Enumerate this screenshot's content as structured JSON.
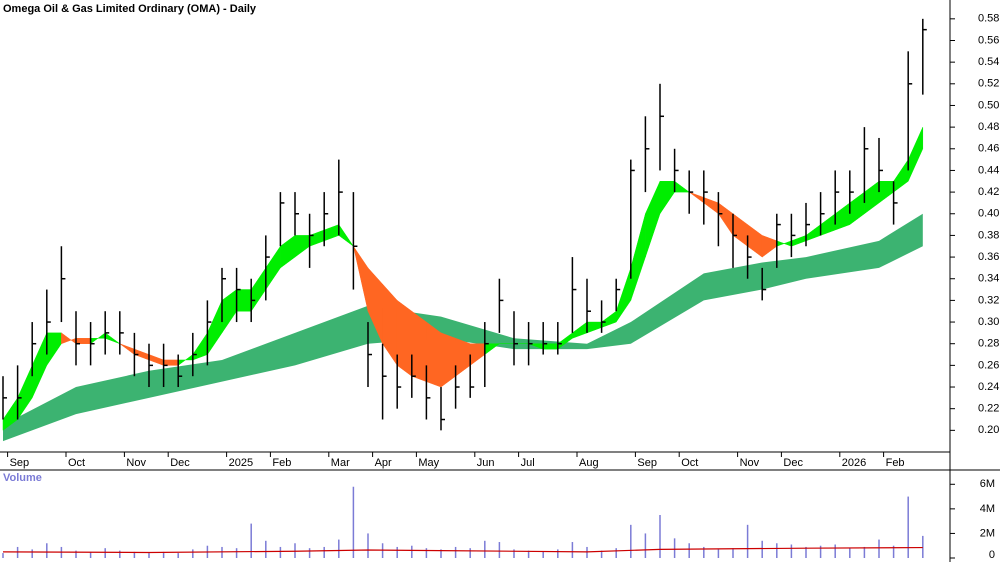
{
  "chart_data": {
    "type": "ohlc",
    "title": "Omega Oil & Gas Limited Ordinary (OMA) - Daily",
    "categories": [
      null,
      "Sep",
      null,
      null,
      null,
      "Oct",
      null,
      null,
      null,
      "Nov",
      null,
      null,
      "Dec",
      null,
      null,
      null,
      "2025",
      null,
      null,
      "Feb",
      null,
      null,
      null,
      "Mar",
      null,
      null,
      "Apr",
      null,
      null,
      "May",
      null,
      null,
      null,
      "Jun",
      null,
      null,
      "Jul",
      null,
      null,
      null,
      "Aug",
      null,
      null,
      null,
      "Sep",
      null,
      null,
      "Oct",
      null,
      null,
      null,
      "Nov",
      null,
      null,
      "Dec",
      null,
      null,
      null,
      "2026",
      null,
      null,
      "Feb",
      null,
      null
    ],
    "high": [
      0.25,
      0.26,
      0.3,
      0.33,
      0.37,
      0.31,
      0.3,
      0.31,
      0.31,
      0.29,
      0.28,
      0.28,
      0.27,
      0.29,
      0.32,
      0.35,
      0.35,
      0.34,
      0.38,
      0.42,
      0.42,
      0.4,
      0.42,
      0.45,
      0.42,
      0.3,
      0.28,
      0.27,
      0.27,
      0.26,
      0.24,
      0.26,
      0.27,
      0.3,
      0.34,
      0.31,
      0.3,
      0.3,
      0.3,
      0.36,
      0.34,
      0.32,
      0.34,
      0.45,
      0.49,
      0.52,
      0.46,
      0.44,
      0.44,
      0.42,
      0.4,
      0.38,
      0.35,
      0.4,
      0.4,
      0.41,
      0.42,
      0.44,
      0.44,
      0.48,
      0.47,
      0.43,
      0.55,
      0.58
    ],
    "low": [
      0.21,
      0.21,
      0.25,
      0.27,
      0.3,
      0.26,
      0.26,
      0.27,
      0.27,
      0.25,
      0.24,
      0.24,
      0.24,
      0.25,
      0.26,
      0.3,
      0.3,
      0.3,
      0.32,
      0.37,
      0.38,
      0.35,
      0.37,
      0.38,
      0.33,
      0.24,
      0.21,
      0.22,
      0.23,
      0.21,
      0.2,
      0.22,
      0.23,
      0.24,
      0.29,
      0.26,
      0.26,
      0.27,
      0.27,
      0.29,
      0.29,
      0.29,
      0.31,
      0.34,
      0.42,
      0.44,
      0.42,
      0.4,
      0.39,
      0.37,
      0.35,
      0.34,
      0.32,
      0.35,
      0.36,
      0.37,
      0.38,
      0.39,
      0.4,
      0.41,
      0.42,
      0.39,
      0.44,
      0.51
    ],
    "close": [
      0.23,
      0.23,
      0.28,
      0.3,
      0.34,
      0.28,
      0.28,
      0.29,
      0.29,
      0.27,
      0.26,
      0.26,
      0.25,
      0.27,
      0.3,
      0.34,
      0.33,
      0.32,
      0.36,
      0.41,
      0.4,
      0.38,
      0.4,
      0.42,
      0.37,
      0.27,
      0.25,
      0.24,
      0.25,
      0.23,
      0.21,
      0.24,
      0.24,
      0.28,
      0.32,
      0.28,
      0.28,
      0.28,
      0.28,
      0.33,
      0.31,
      0.3,
      0.33,
      0.44,
      0.46,
      0.49,
      0.44,
      0.42,
      0.42,
      0.4,
      0.38,
      0.36,
      0.33,
      0.39,
      0.38,
      0.39,
      0.4,
      0.42,
      0.42,
      0.46,
      0.44,
      0.41,
      0.52,
      0.57
    ],
    "color": "#000000",
    "short_ribbon": {
      "fast": [
        0.21,
        0.23,
        0.26,
        0.29,
        0.29,
        0.28,
        0.28,
        0.29,
        0.28,
        0.27,
        0.265,
        0.26,
        0.26,
        0.27,
        0.29,
        0.32,
        0.33,
        0.33,
        0.35,
        0.37,
        0.38,
        0.38,
        0.385,
        0.39,
        0.37,
        0.31,
        0.28,
        0.26,
        0.25,
        0.245,
        0.24,
        0.25,
        0.26,
        0.27,
        0.28,
        0.28,
        0.28,
        0.28,
        0.28,
        0.29,
        0.3,
        0.3,
        0.31,
        0.35,
        0.4,
        0.43,
        0.43,
        0.42,
        0.41,
        0.4,
        0.38,
        0.37,
        0.36,
        0.37,
        0.375,
        0.38,
        0.39,
        0.4,
        0.41,
        0.42,
        0.43,
        0.43,
        0.45,
        0.48
      ],
      "slow": [
        0.2,
        0.21,
        0.23,
        0.26,
        0.28,
        0.285,
        0.285,
        0.285,
        0.28,
        0.275,
        0.27,
        0.265,
        0.265,
        0.265,
        0.27,
        0.29,
        0.31,
        0.31,
        0.33,
        0.35,
        0.36,
        0.37,
        0.375,
        0.38,
        0.37,
        0.35,
        0.335,
        0.32,
        0.31,
        0.3,
        0.29,
        0.285,
        0.28,
        0.28,
        0.28,
        0.28,
        0.28,
        0.275,
        0.275,
        0.285,
        0.29,
        0.295,
        0.3,
        0.32,
        0.36,
        0.4,
        0.42,
        0.42,
        0.415,
        0.41,
        0.4,
        0.39,
        0.38,
        0.375,
        0.37,
        0.375,
        0.38,
        0.385,
        0.39,
        0.4,
        0.41,
        0.42,
        0.43,
        0.46
      ],
      "up_color": "#00ee00",
      "down_color": "#ff6622"
    },
    "long_ribbon": {
      "x": [
        0,
        5,
        10,
        15,
        20,
        25,
        30,
        35,
        40,
        43,
        48,
        52,
        55,
        60,
        63
      ],
      "upper": [
        0.205,
        0.24,
        0.255,
        0.265,
        0.29,
        0.315,
        0.305,
        0.285,
        0.28,
        0.3,
        0.345,
        0.355,
        0.36,
        0.375,
        0.4
      ],
      "lower": [
        0.19,
        0.215,
        0.23,
        0.245,
        0.26,
        0.28,
        0.285,
        0.275,
        0.275,
        0.28,
        0.32,
        0.33,
        0.34,
        0.35,
        0.37
      ],
      "color": "#3cb371"
    },
    "ylim": [
      0.18,
      0.59
    ],
    "yticks": [
      {
        "value": 0.2,
        "label": "0.20"
      },
      0.22,
      0.24,
      0.26,
      0.28,
      {
        "value": 0.3,
        "label": "0.30"
      },
      0.32,
      0.34,
      0.36,
      0.38,
      {
        "value": 0.4,
        "label": "0.40"
      },
      0.42,
      0.44,
      0.46,
      0.48,
      {
        "value": 0.5,
        "label": "0.50"
      },
      0.52,
      0.54,
      0.56,
      0.58
    ],
    "volume": {
      "label": "Volume",
      "values": [
        400000,
        900000,
        700000,
        1200000,
        900000,
        600000,
        500000,
        800000,
        600000,
        500000,
        400000,
        500000,
        400000,
        700000,
        1000000,
        900000,
        800000,
        2800000,
        1400000,
        900000,
        1200000,
        800000,
        900000,
        1500000,
        5800000,
        2000000,
        1200000,
        900000,
        1000000,
        800000,
        700000,
        900000,
        800000,
        1400000,
        1300000,
        700000,
        600000,
        500000,
        700000,
        1300000,
        900000,
        600000,
        800000,
        2700000,
        2000000,
        3500000,
        1600000,
        1200000,
        900000,
        700000,
        800000,
        2700000,
        1400000,
        1200000,
        1100000,
        900000,
        1000000,
        1100000,
        800000,
        900000,
        1500000,
        1000000,
        5000000,
        1800000
      ],
      "color": "#7b7bd6",
      "average": {
        "x": [
          0,
          10,
          20,
          25,
          30,
          40,
          45,
          50,
          55,
          63
        ],
        "values": [
          500000,
          450000,
          550000,
          650000,
          600000,
          500000,
          700000,
          750000,
          800000,
          850000
        ],
        "color": "#cc0000"
      },
      "ylim": [
        0,
        7000000
      ],
      "yticks": [
        0,
        {
          "value": 2000000,
          "label": "2M"
        },
        {
          "value": 4000000,
          "label": "4M"
        },
        {
          "value": 6000000,
          "label": "6M"
        }
      ]
    }
  }
}
